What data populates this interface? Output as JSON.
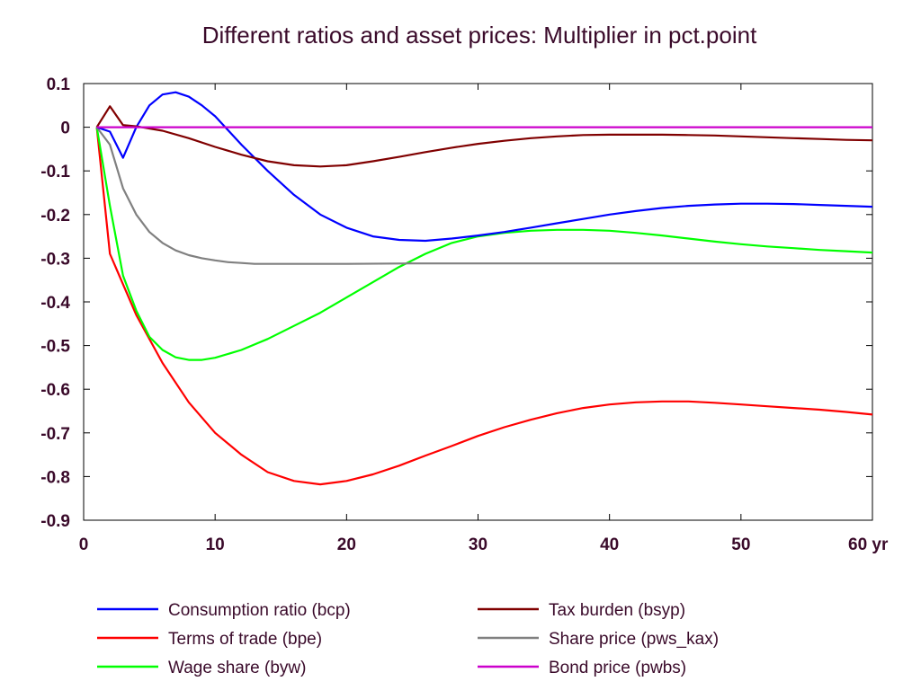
{
  "chart_data": {
    "type": "line",
    "title": "Different ratios and asset prices: Multiplier in pct.point",
    "x_unit_label": "yr",
    "xlim": [
      0,
      60
    ],
    "ylim": [
      -0.9,
      0.1
    ],
    "x_ticks": [
      0,
      10,
      20,
      30,
      40,
      50,
      60
    ],
    "x_tick_labels": [
      "0",
      "10",
      "20",
      "30",
      "40",
      "50",
      "60 yr"
    ],
    "y_ticks": [
      0.1,
      0,
      -0.1,
      -0.2,
      -0.3,
      -0.4,
      -0.5,
      -0.6,
      -0.7,
      -0.8,
      -0.9
    ],
    "y_tick_labels": [
      "0.1",
      "0",
      "-0.1",
      "-0.2",
      "-0.3",
      "-0.4",
      "-0.5",
      "-0.6",
      "-0.7",
      "-0.8",
      "-0.9"
    ],
    "grid": false,
    "legend_position": "bottom",
    "series": [
      {
        "name": "Consumption ratio (bcp)",
        "color": "#0000ff",
        "x": [
          1,
          2,
          3,
          4,
          5,
          6,
          7,
          8,
          9,
          10,
          12,
          14,
          16,
          18,
          20,
          22,
          24,
          26,
          28,
          30,
          32,
          34,
          36,
          38,
          40,
          42,
          44,
          46,
          48,
          50,
          52,
          54,
          56,
          58,
          60
        ],
        "y": [
          0,
          -0.01,
          -0.07,
          0.0,
          0.05,
          0.075,
          0.08,
          0.07,
          0.05,
          0.025,
          -0.04,
          -0.1,
          -0.155,
          -0.2,
          -0.23,
          -0.25,
          -0.258,
          -0.26,
          -0.255,
          -0.248,
          -0.24,
          -0.23,
          -0.22,
          -0.21,
          -0.2,
          -0.192,
          -0.185,
          -0.18,
          -0.177,
          -0.175,
          -0.175,
          -0.176,
          -0.178,
          -0.18,
          -0.182
        ]
      },
      {
        "name": "Terms of trade (bpe)",
        "color": "#ff0000",
        "x": [
          1,
          2,
          4,
          6,
          8,
          10,
          12,
          14,
          16,
          18,
          20,
          22,
          24,
          26,
          28,
          30,
          32,
          34,
          36,
          38,
          40,
          42,
          44,
          46,
          48,
          50,
          52,
          54,
          56,
          58,
          60
        ],
        "y": [
          0,
          -0.29,
          -0.43,
          -0.54,
          -0.63,
          -0.7,
          -0.75,
          -0.79,
          -0.81,
          -0.818,
          -0.81,
          -0.795,
          -0.775,
          -0.752,
          -0.73,
          -0.707,
          -0.687,
          -0.67,
          -0.655,
          -0.643,
          -0.635,
          -0.63,
          -0.628,
          -0.628,
          -0.631,
          -0.635,
          -0.639,
          -0.643,
          -0.647,
          -0.652,
          -0.658
        ]
      },
      {
        "name": "Wage share (byw)",
        "color": "#00ff00",
        "x": [
          1,
          2,
          3,
          4,
          5,
          6,
          7,
          8,
          9,
          10,
          12,
          14,
          16,
          18,
          20,
          22,
          24,
          26,
          28,
          30,
          32,
          34,
          36,
          38,
          40,
          42,
          44,
          46,
          48,
          50,
          52,
          54,
          56,
          58,
          60
        ],
        "y": [
          0,
          -0.18,
          -0.34,
          -0.42,
          -0.48,
          -0.51,
          -0.527,
          -0.533,
          -0.533,
          -0.528,
          -0.51,
          -0.485,
          -0.455,
          -0.425,
          -0.39,
          -0.355,
          -0.32,
          -0.29,
          -0.265,
          -0.25,
          -0.242,
          -0.237,
          -0.235,
          -0.235,
          -0.237,
          -0.242,
          -0.248,
          -0.255,
          -0.262,
          -0.268,
          -0.273,
          -0.277,
          -0.281,
          -0.284,
          -0.287
        ]
      },
      {
        "name": "Tax burden (bsyp)",
        "color": "#800000",
        "x": [
          1,
          2,
          3,
          4,
          6,
          8,
          10,
          12,
          14,
          16,
          18,
          20,
          22,
          24,
          26,
          28,
          30,
          32,
          34,
          36,
          38,
          40,
          42,
          44,
          46,
          48,
          50,
          52,
          54,
          56,
          58,
          60
        ],
        "y": [
          0,
          0.048,
          0.005,
          0.002,
          -0.008,
          -0.025,
          -0.045,
          -0.063,
          -0.078,
          -0.087,
          -0.09,
          -0.087,
          -0.078,
          -0.068,
          -0.057,
          -0.047,
          -0.038,
          -0.031,
          -0.025,
          -0.021,
          -0.018,
          -0.017,
          -0.017,
          -0.017,
          -0.018,
          -0.019,
          -0.021,
          -0.023,
          -0.025,
          -0.027,
          -0.029,
          -0.03
        ]
      },
      {
        "name": "Share price (pws_kax)",
        "color": "#808080",
        "x": [
          1,
          2,
          3,
          4,
          5,
          6,
          7,
          8,
          9,
          10,
          11,
          12,
          13,
          14,
          16,
          18,
          20,
          25,
          30,
          35,
          40,
          45,
          50,
          55,
          60
        ],
        "y": [
          0,
          -0.04,
          -0.14,
          -0.2,
          -0.24,
          -0.265,
          -0.282,
          -0.293,
          -0.3,
          -0.305,
          -0.309,
          -0.311,
          -0.313,
          -0.313,
          -0.313,
          -0.313,
          -0.313,
          -0.312,
          -0.312,
          -0.312,
          -0.312,
          -0.312,
          -0.312,
          -0.312,
          -0.312
        ]
      },
      {
        "name": "Bond price (pwbs)",
        "color": "#cc00cc",
        "x": [
          1,
          60
        ],
        "y": [
          0,
          0
        ]
      }
    ]
  }
}
